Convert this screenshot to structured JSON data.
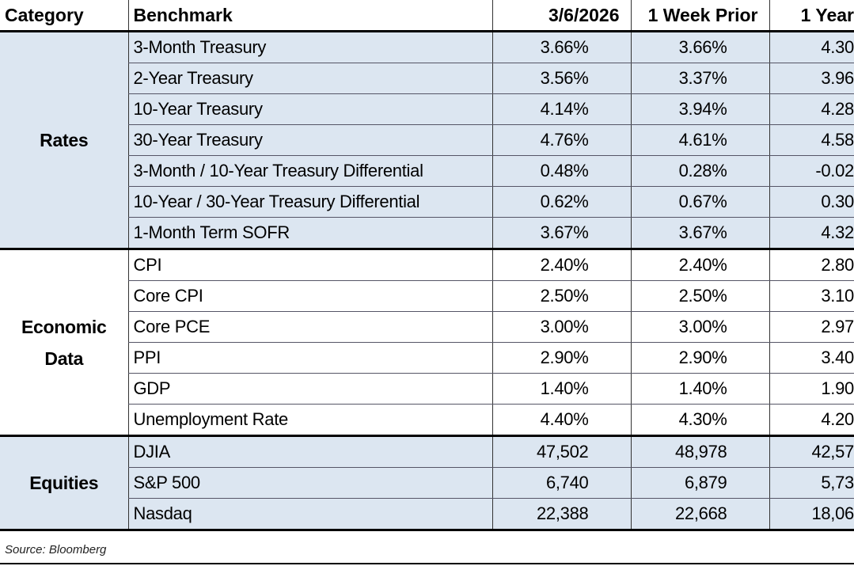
{
  "table": {
    "columns": [
      "Category",
      "Benchmark",
      "3/6/2026",
      "1 Week Prior",
      "1 Year"
    ],
    "groups": [
      {
        "category": "Rates",
        "rows": [
          [
            "3-Month Treasury",
            "3.66%",
            "3.66%",
            "4.30"
          ],
          [
            "2-Year Treasury",
            "3.56%",
            "3.37%",
            "3.96"
          ],
          [
            "10-Year Treasury",
            "4.14%",
            "3.94%",
            "4.28"
          ],
          [
            "30-Year Treasury",
            "4.76%",
            "4.61%",
            "4.58"
          ],
          [
            "3-Month / 10-Year Treasury Differential",
            "0.48%",
            "0.28%",
            "-0.02"
          ],
          [
            "10-Year / 30-Year Treasury Differential",
            "0.62%",
            "0.67%",
            "0.30"
          ],
          [
            "1-Month Term SOFR",
            "3.67%",
            "3.67%",
            "4.32"
          ]
        ]
      },
      {
        "category": "Economic Data",
        "rows": [
          [
            "CPI",
            "2.40%",
            "2.40%",
            "2.80"
          ],
          [
            "Core CPI",
            "2.50%",
            "2.50%",
            "3.10"
          ],
          [
            "Core PCE",
            "3.00%",
            "3.00%",
            "2.97"
          ],
          [
            "PPI",
            "2.90%",
            "2.90%",
            "3.40"
          ],
          [
            "GDP",
            "1.40%",
            "1.40%",
            "1.90"
          ],
          [
            "Unemployment Rate",
            "4.40%",
            "4.30%",
            "4.20"
          ]
        ]
      },
      {
        "category": "Equities",
        "rows": [
          [
            "DJIA",
            "47,502",
            "48,978",
            "42,57"
          ],
          [
            "S&P 500",
            "6,740",
            "6,879",
            "5,73"
          ],
          [
            "Nasdaq",
            "22,388",
            "22,668",
            "18,06"
          ]
        ]
      }
    ]
  },
  "source": "Source: Bloomberg"
}
